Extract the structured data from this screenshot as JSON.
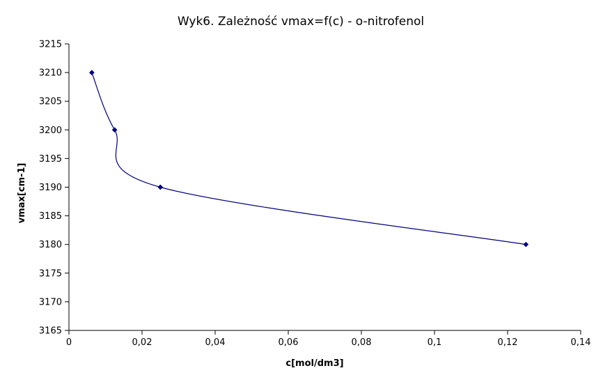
{
  "chart_data": {
    "type": "scatter",
    "title": "Wyk6. Zależność vmax=f(c) - o-nitrofenol",
    "xlabel": "c[mol/dm3]",
    "ylabel": "vmax[cm-1]",
    "xlim": [
      0,
      0.14
    ],
    "ylim": [
      3165,
      3215
    ],
    "x_ticks": [
      0,
      0.02,
      0.04,
      0.06,
      0.08,
      0.1,
      0.12,
      0.14
    ],
    "x_tick_labels": [
      "0",
      "0,02",
      "0,04",
      "0,06",
      "0,08",
      "0,1",
      "0,12",
      "0,14"
    ],
    "y_ticks": [
      3165,
      3170,
      3175,
      3180,
      3185,
      3190,
      3195,
      3200,
      3205,
      3210,
      3215
    ],
    "y_tick_labels": [
      "3165",
      "3170",
      "3175",
      "3180",
      "3185",
      "3190",
      "3195",
      "3200",
      "3205",
      "3210",
      "3215"
    ],
    "grid": false,
    "smoothed_line": true,
    "series": [
      {
        "x": [
          0.00625,
          0.0125,
          0.025,
          0.125
        ],
        "y": [
          3210,
          3200,
          3190,
          3180
        ],
        "color": "#000080",
        "marker": "diamond"
      }
    ]
  }
}
